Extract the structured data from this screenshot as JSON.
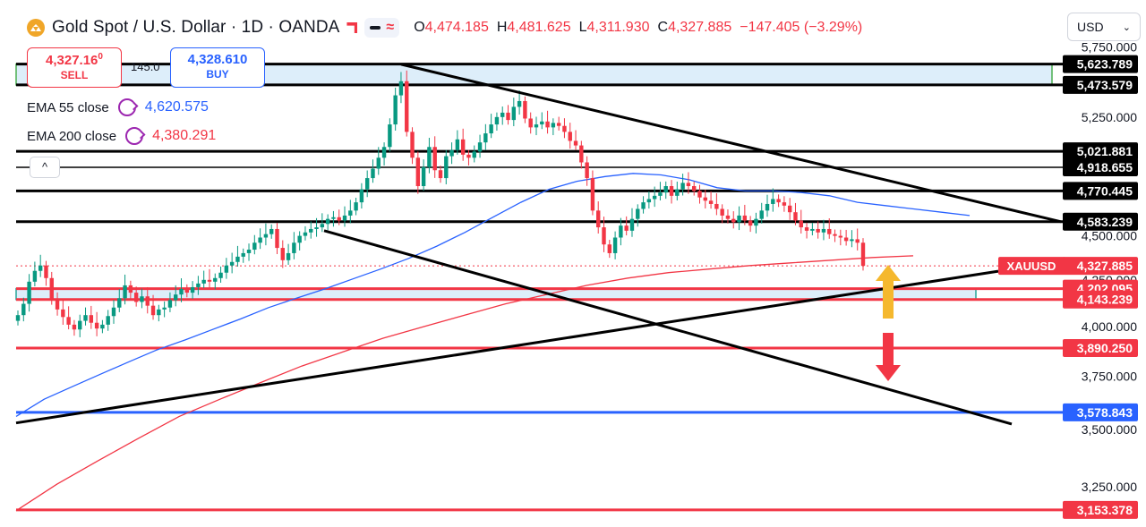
{
  "header": {
    "title": "Gold Spot / U.S. Dollar · 1D · OANDA",
    "open_label": "O",
    "open": "4,474.185",
    "high_label": "H",
    "high": "4,481.625",
    "low_label": "L",
    "low": "4,311.930",
    "close_label": "C",
    "close": "4,327.885",
    "change": "−147.405 (−3.29%)"
  },
  "trade": {
    "sell_price_main": "4,327.16",
    "sell_price_sup": "0",
    "sell_label": "SELL",
    "buy_price": "4,328.610",
    "buy_label": "BUY",
    "spread": "145.0"
  },
  "indicators": {
    "ema55_label": "EMA 55 close",
    "ema55_value": "4,620.575",
    "ema200_label": "EMA 200 close",
    "ema200_value": "4,380.291"
  },
  "controls": {
    "collapse_glyph": "^",
    "currency": "USD",
    "currency_chevron": "⌄"
  },
  "colors": {
    "up": "#089981",
    "down": "#f23645",
    "ema55": "#2962ff",
    "ema200": "#f23645",
    "resistance": "#000000",
    "support_red": "#f23645",
    "support_blue": "#2962ff",
    "zone_fill": "#ddeefa",
    "arrow_up": "#f5b82e",
    "arrow_down": "#f23645"
  },
  "chart_data": {
    "type": "candlestick",
    "symbol": "XAUUSD",
    "timeframe": "1D",
    "ylim": [
      3120,
      5780
    ],
    "y_scale": "log",
    "grid": false,
    "axis_ticks": [
      "5,750.000",
      "5,250.000",
      "4,500.000",
      "4,250.000",
      "4,000.000",
      "3,750.000",
      "3,500.000",
      "3,250.000"
    ],
    "last_price": {
      "label": "XAUUSD",
      "value": "4,327.885"
    },
    "horizontal_levels": [
      {
        "value": 5623.789,
        "label": "5,623.789",
        "color": "#000000"
      },
      {
        "value": 5473.579,
        "label": "5,473.579",
        "color": "#000000"
      },
      {
        "value": 5021.881,
        "label": "5,021.881",
        "color": "#000000"
      },
      {
        "value": 4918.655,
        "label": "4,918.655",
        "color": "#000000"
      },
      {
        "value": 4770.445,
        "label": "4,770.445",
        "color": "#000000"
      },
      {
        "value": 4583.239,
        "label": "4,583.239",
        "color": "#000000"
      },
      {
        "value": 4202.095,
        "label": "4,202.095",
        "color": "#f23645"
      },
      {
        "value": 4143.239,
        "label": "4,143.239",
        "color": "#f23645"
      },
      {
        "value": 3890.25,
        "label": "3,890.250",
        "color": "#f23645"
      },
      {
        "value": 3578.843,
        "label": "3,578.843",
        "color": "#2962ff"
      },
      {
        "value": 3153.378,
        "label": "3,153.378",
        "color": "#f23645"
      }
    ],
    "zones": [
      {
        "from": 5473.579,
        "to": 5623.789,
        "color": "#ddeefa"
      },
      {
        "from": 4143.239,
        "to": 4202.095,
        "color": "#ddeefa"
      }
    ],
    "closes": [
      4060,
      4120,
      4240,
      4300,
      4330,
      4260,
      4140,
      4090,
      4050,
      4010,
      3985,
      4030,
      4060,
      4020,
      3990,
      4010,
      4055,
      4100,
      4150,
      4220,
      4180,
      4130,
      4160,
      4110,
      4060,
      4090,
      4100,
      4140,
      4170,
      4200,
      4180,
      4210,
      4230,
      4250,
      4240,
      4260,
      4290,
      4330,
      4350,
      4380,
      4400,
      4420,
      4460,
      4490,
      4510,
      4540,
      4430,
      4360,
      4400,
      4460,
      4500,
      4520,
      4540,
      4550,
      4570,
      4600,
      4610,
      4590,
      4620,
      4650,
      4700,
      4780,
      4850,
      4910,
      4980,
      5050,
      5200,
      5400,
      5500,
      5150,
      4980,
      4800,
      4920,
      5050,
      4900,
      4850,
      4990,
      5030,
      5100,
      5000,
      4980,
      5020,
      5080,
      5140,
      5200,
      5250,
      5280,
      5230,
      5320,
      5360,
      5240,
      5180,
      5200,
      5220,
      5180,
      5210,
      5190,
      5150,
      5090,
      5060,
      4950,
      4850,
      4650,
      4550,
      4450,
      4400,
      4490,
      4560,
      4530,
      4600,
      4660,
      4700,
      4720,
      4740,
      4760,
      4800,
      4740,
      4780,
      4820,
      4800,
      4770,
      4730,
      4710,
      4690,
      4660,
      4620,
      4600,
      4580,
      4620,
      4590,
      4560,
      4600,
      4650,
      4690,
      4720,
      4700,
      4680,
      4640,
      4590,
      4550,
      4530,
      4540,
      4520,
      4540,
      4510,
      4500,
      4490,
      4470,
      4480,
      4460,
      4327.885
    ],
    "ema55": [
      3560,
      3640,
      3700,
      3760,
      3820,
      3880,
      3930,
      3985,
      4040,
      4100,
      4150,
      4200,
      4255,
      4310,
      4370,
      4440,
      4520,
      4610,
      4700,
      4780,
      4830,
      4860,
      4880,
      4870,
      4840,
      4790,
      4770,
      4770,
      4760,
      4740,
      4700,
      4680,
      4660,
      4640,
      4620
    ],
    "ema200": [
      3150,
      3260,
      3360,
      3460,
      3560,
      3640,
      3720,
      3800,
      3870,
      3940,
      4000,
      4060,
      4120,
      4170,
      4220,
      4260,
      4290,
      4310,
      4330,
      4345,
      4360,
      4375,
      4385
    ],
    "trendlines": [
      {
        "name": "upper-descending",
        "from": 5622,
        "to": 4583
      },
      {
        "name": "lower-descending",
        "from": 4530,
        "to": 3525
      },
      {
        "name": "rising-support",
        "from": 3530,
        "to": 4298
      }
    ],
    "annotations": [
      "up-arrow",
      "down-arrow"
    ]
  }
}
